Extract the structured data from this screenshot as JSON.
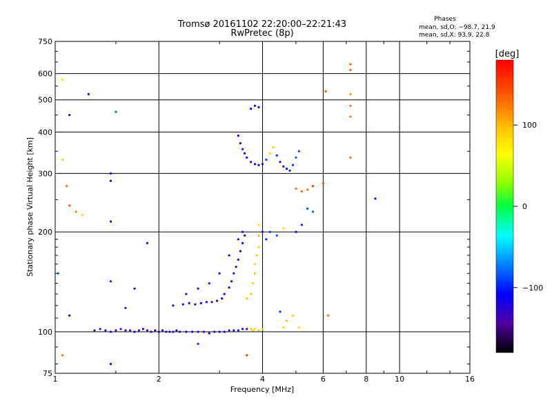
{
  "chart_data": {
    "type": "scatter",
    "title": "Tromsø 20161102 22:20:00–22:21:43",
    "subtitle": "RwPretec (8p)",
    "xlabel": "Frequency [MHz]",
    "ylabel": "Stationary phase Virtual Height [km]",
    "x_scale": "log",
    "y_scale": "log",
    "xlim": [
      1,
      16
    ],
    "ylim": [
      75,
      750
    ],
    "x_ticks": [
      "1",
      "2",
      "4",
      "6",
      "8",
      "10",
      "16"
    ],
    "x_tick_values": [
      1,
      2,
      4,
      6,
      8,
      10,
      16
    ],
    "y_ticks": [
      "75",
      "100",
      "200",
      "300",
      "400",
      "500",
      "600",
      "750"
    ],
    "y_tick_values": [
      75,
      100,
      200,
      300,
      400,
      500,
      600,
      750
    ],
    "grid": true,
    "phase_stats": {
      "heading": "Phases",
      "o_line": "mean, sd,O: −98.7, 21.9",
      "x_line": "mean, sd,X:  93.9, 22.8"
    },
    "colorbar": {
      "label": "[deg]",
      "range": [
        -180,
        180
      ],
      "ticks": [
        "100",
        "0",
        "−100"
      ],
      "tick_values": [
        100,
        0,
        -100
      ]
    },
    "series": [
      {
        "points": [
          {
            "x": 1.3,
            "y": 101,
            "p": -120
          },
          {
            "x": 1.35,
            "y": 102,
            "p": -130
          },
          {
            "x": 1.4,
            "y": 101,
            "p": -115
          },
          {
            "x": 1.45,
            "y": 100,
            "p": -125
          },
          {
            "x": 1.5,
            "y": 101,
            "p": -120
          },
          {
            "x": 1.55,
            "y": 102,
            "p": -135
          },
          {
            "x": 1.6,
            "y": 101,
            "p": -118
          },
          {
            "x": 1.65,
            "y": 101,
            "p": -125
          },
          {
            "x": 1.7,
            "y": 100,
            "p": -122
          },
          {
            "x": 1.75,
            "y": 101,
            "p": -130
          },
          {
            "x": 1.8,
            "y": 102,
            "p": -116
          },
          {
            "x": 1.85,
            "y": 101,
            "p": -121
          },
          {
            "x": 1.9,
            "y": 100,
            "p": -128
          },
          {
            "x": 1.95,
            "y": 101,
            "p": -119
          },
          {
            "x": 2.0,
            "y": 100,
            "p": -124
          },
          {
            "x": 2.05,
            "y": 101,
            "p": -117
          },
          {
            "x": 2.1,
            "y": 100,
            "p": -126
          },
          {
            "x": 2.15,
            "y": 100,
            "p": -121
          },
          {
            "x": 2.2,
            "y": 100,
            "p": -118
          },
          {
            "x": 2.25,
            "y": 101,
            "p": -123
          },
          {
            "x": 2.3,
            "y": 100,
            "p": -127
          },
          {
            "x": 2.4,
            "y": 100,
            "p": -120
          },
          {
            "x": 2.5,
            "y": 100,
            "p": -118
          },
          {
            "x": 2.6,
            "y": 100,
            "p": -122
          },
          {
            "x": 2.7,
            "y": 100,
            "p": -126
          },
          {
            "x": 2.8,
            "y": 99,
            "p": -119
          },
          {
            "x": 2.9,
            "y": 100,
            "p": -123
          },
          {
            "x": 3.0,
            "y": 100,
            "p": -117
          },
          {
            "x": 3.1,
            "y": 100,
            "p": -121
          },
          {
            "x": 3.2,
            "y": 101,
            "p": -128
          },
          {
            "x": 3.3,
            "y": 101,
            "p": -120
          },
          {
            "x": 3.4,
            "y": 101,
            "p": -115
          },
          {
            "x": 3.5,
            "y": 102,
            "p": -110
          },
          {
            "x": 3.6,
            "y": 102,
            "p": -125
          },
          {
            "x": 3.7,
            "y": 102,
            "p": 90
          },
          {
            "x": 3.75,
            "y": 101,
            "p": 95
          },
          {
            "x": 3.8,
            "y": 102,
            "p": 85
          },
          {
            "x": 3.9,
            "y": 101,
            "p": 92
          },
          {
            "x": 4.0,
            "y": 102,
            "p": 88
          },
          {
            "x": 2.2,
            "y": 120,
            "p": -110
          },
          {
            "x": 2.35,
            "y": 121,
            "p": -118
          },
          {
            "x": 2.45,
            "y": 122,
            "p": -112
          },
          {
            "x": 2.55,
            "y": 121,
            "p": -120
          },
          {
            "x": 2.65,
            "y": 122,
            "p": -115
          },
          {
            "x": 2.75,
            "y": 123,
            "p": -118
          },
          {
            "x": 2.85,
            "y": 123,
            "p": -112
          },
          {
            "x": 2.95,
            "y": 124,
            "p": -121
          },
          {
            "x": 3.05,
            "y": 126,
            "p": -116
          },
          {
            "x": 3.1,
            "y": 130,
            "p": -113
          },
          {
            "x": 3.2,
            "y": 136,
            "p": -124
          },
          {
            "x": 3.25,
            "y": 142,
            "p": -118
          },
          {
            "x": 3.3,
            "y": 150,
            "p": -112
          },
          {
            "x": 3.35,
            "y": 157,
            "p": -120
          },
          {
            "x": 3.4,
            "y": 165,
            "p": -115
          },
          {
            "x": 3.45,
            "y": 175,
            "p": -122
          },
          {
            "x": 3.5,
            "y": 185,
            "p": -118
          },
          {
            "x": 3.55,
            "y": 195,
            "p": -110
          },
          {
            "x": 2.4,
            "y": 130,
            "p": -128
          },
          {
            "x": 2.6,
            "y": 135,
            "p": -135
          },
          {
            "x": 2.8,
            "y": 140,
            "p": -125
          },
          {
            "x": 3.0,
            "y": 150,
            "p": -130
          },
          {
            "x": 3.2,
            "y": 170,
            "p": -126
          },
          {
            "x": 3.4,
            "y": 190,
            "p": -132
          },
          {
            "x": 3.5,
            "y": 200,
            "p": -120
          },
          {
            "x": 3.6,
            "y": 126,
            "p": 95
          },
          {
            "x": 3.7,
            "y": 130,
            "p": 92
          },
          {
            "x": 3.75,
            "y": 140,
            "p": 88
          },
          {
            "x": 3.8,
            "y": 150,
            "p": 96
          },
          {
            "x": 3.8,
            "y": 160,
            "p": 90
          },
          {
            "x": 3.85,
            "y": 170,
            "p": 94
          },
          {
            "x": 3.9,
            "y": 180,
            "p": 85
          },
          {
            "x": 3.9,
            "y": 195,
            "p": 98
          },
          {
            "x": 3.9,
            "y": 210,
            "p": 80
          },
          {
            "x": 4.0,
            "y": 200,
            "p": -105
          },
          {
            "x": 4.1,
            "y": 190,
            "p": -100
          },
          {
            "x": 4.2,
            "y": 200,
            "p": -95
          },
          {
            "x": 4.4,
            "y": 195,
            "p": -85
          },
          {
            "x": 4.6,
            "y": 205,
            "p": 80
          },
          {
            "x": 5.0,
            "y": 200,
            "p": -110
          },
          {
            "x": 5.2,
            "y": 210,
            "p": -100
          },
          {
            "x": 3.4,
            "y": 390,
            "p": -110
          },
          {
            "x": 3.45,
            "y": 370,
            "p": -115
          },
          {
            "x": 3.5,
            "y": 355,
            "p": -105
          },
          {
            "x": 3.55,
            "y": 345,
            "p": -110
          },
          {
            "x": 3.6,
            "y": 335,
            "p": -120
          },
          {
            "x": 3.7,
            "y": 325,
            "p": -115
          },
          {
            "x": 3.8,
            "y": 320,
            "p": -108
          },
          {
            "x": 3.9,
            "y": 318,
            "p": -112
          },
          {
            "x": 4.0,
            "y": 320,
            "p": -106
          },
          {
            "x": 4.1,
            "y": 330,
            "p": -90
          },
          {
            "x": 4.2,
            "y": 345,
            "p": 88
          },
          {
            "x": 4.3,
            "y": 360,
            "p": 92
          },
          {
            "x": 4.4,
            "y": 340,
            "p": -100
          },
          {
            "x": 4.5,
            "y": 325,
            "p": -112
          },
          {
            "x": 4.6,
            "y": 315,
            "p": -105
          },
          {
            "x": 4.7,
            "y": 310,
            "p": -108
          },
          {
            "x": 4.8,
            "y": 306,
            "p": -100
          },
          {
            "x": 4.9,
            "y": 318,
            "p": -95
          },
          {
            "x": 5.0,
            "y": 335,
            "p": -85
          },
          {
            "x": 5.1,
            "y": 350,
            "p": -90
          },
          {
            "x": 3.7,
            "y": 470,
            "p": -110
          },
          {
            "x": 3.8,
            "y": 480,
            "p": -105
          },
          {
            "x": 3.9,
            "y": 475,
            "p": -112
          },
          {
            "x": 5.0,
            "y": 270,
            "p": 130
          },
          {
            "x": 5.2,
            "y": 265,
            "p": 140
          },
          {
            "x": 5.4,
            "y": 268,
            "p": 125
          },
          {
            "x": 5.6,
            "y": 275,
            "p": 150
          },
          {
            "x": 5.4,
            "y": 235,
            "p": -85
          },
          {
            "x": 5.6,
            "y": 230,
            "p": -80
          },
          {
            "x": 4.5,
            "y": 115,
            "p": -90
          },
          {
            "x": 4.7,
            "y": 108,
            "p": 100
          },
          {
            "x": 4.9,
            "y": 112,
            "p": 95
          },
          {
            "x": 4.6,
            "y": 103,
            "p": 90
          },
          {
            "x": 5.1,
            "y": 103,
            "p": 90
          },
          {
            "x": 1.05,
            "y": 575,
            "p": 80
          },
          {
            "x": 1.25,
            "y": 520,
            "p": -110
          },
          {
            "x": 1.5,
            "y": 460,
            "p": -80
          },
          {
            "x": 1.1,
            "y": 450,
            "p": -110
          },
          {
            "x": 1.05,
            "y": 330,
            "p": 90
          },
          {
            "x": 1.45,
            "y": 300,
            "p": -115
          },
          {
            "x": 1.45,
            "y": 285,
            "p": -118
          },
          {
            "x": 1.08,
            "y": 275,
            "p": 130
          },
          {
            "x": 1.1,
            "y": 240,
            "p": 140
          },
          {
            "x": 1.15,
            "y": 230,
            "p": 120
          },
          {
            "x": 1.2,
            "y": 225,
            "p": 90
          },
          {
            "x": 1.45,
            "y": 215,
            "p": -120
          },
          {
            "x": 1.02,
            "y": 150,
            "p": -80
          },
          {
            "x": 1.1,
            "y": 112,
            "p": -110
          },
          {
            "x": 1.05,
            "y": 85,
            "p": 130
          },
          {
            "x": 1.45,
            "y": 80,
            "p": -120
          },
          {
            "x": 1.45,
            "y": 142,
            "p": -100
          },
          {
            "x": 1.7,
            "y": 135,
            "p": -110
          },
          {
            "x": 1.6,
            "y": 118,
            "p": -125
          },
          {
            "x": 1.85,
            "y": 185,
            "p": -115
          },
          {
            "x": 2.6,
            "y": 92,
            "p": -125
          },
          {
            "x": 3.6,
            "y": 85,
            "p": 150
          },
          {
            "x": 6.1,
            "y": 530,
            "p": 140
          },
          {
            "x": 7.2,
            "y": 640,
            "p": 140
          },
          {
            "x": 7.2,
            "y": 615,
            "p": 140
          },
          {
            "x": 7.2,
            "y": 520,
            "p": 110
          },
          {
            "x": 7.2,
            "y": 480,
            "p": 130
          },
          {
            "x": 7.2,
            "y": 445,
            "p": 130
          },
          {
            "x": 7.2,
            "y": 335,
            "p": 130
          },
          {
            "x": 8.5,
            "y": 252,
            "p": -120
          },
          {
            "x": 6.0,
            "y": 280,
            "p": 140
          },
          {
            "x": 6.2,
            "y": 112,
            "p": 130
          }
        ]
      }
    ]
  }
}
